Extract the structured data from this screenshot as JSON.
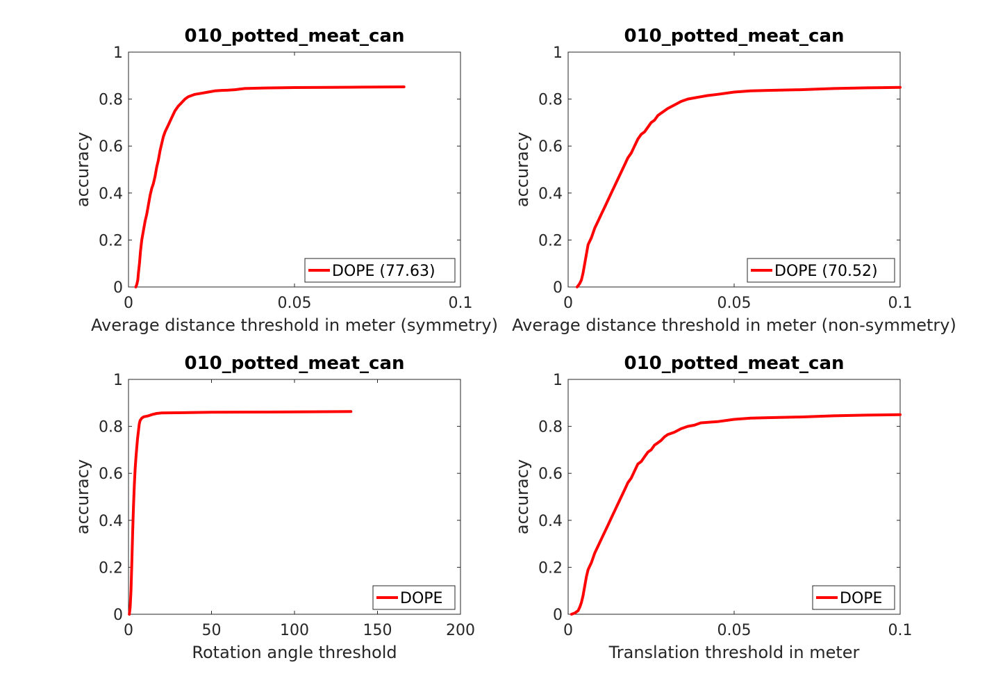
{
  "chart_data": [
    {
      "type": "line",
      "title": "010_potted_meat_can",
      "xlabel": "Average distance threshold in meter (symmetry)",
      "ylabel": "accuracy",
      "xlim": [
        0,
        0.1
      ],
      "ylim": [
        0,
        1
      ],
      "xticks": [
        "0",
        "0.05",
        "0.1"
      ],
      "yticks": [
        "0",
        "0.2",
        "0.4",
        "0.6",
        "0.8",
        "1"
      ],
      "grid": false,
      "legend_position": "bottom-right",
      "line_color": "#ff0000",
      "series": [
        {
          "name": "DOPE (77.63)",
          "x": [
            0.0022,
            0.0025,
            0.0028,
            0.003,
            0.0033,
            0.0036,
            0.004,
            0.0045,
            0.005,
            0.0055,
            0.006,
            0.0065,
            0.007,
            0.0075,
            0.008,
            0.0085,
            0.009,
            0.0095,
            0.01,
            0.0105,
            0.011,
            0.012,
            0.013,
            0.014,
            0.015,
            0.016,
            0.017,
            0.018,
            0.019,
            0.02,
            0.022,
            0.024,
            0.026,
            0.028,
            0.03,
            0.032,
            0.035,
            0.04,
            0.05,
            0.06,
            0.07,
            0.083
          ],
          "y": [
            0.0,
            0.01,
            0.03,
            0.06,
            0.1,
            0.15,
            0.2,
            0.24,
            0.28,
            0.31,
            0.35,
            0.39,
            0.42,
            0.44,
            0.47,
            0.51,
            0.54,
            0.58,
            0.61,
            0.64,
            0.66,
            0.69,
            0.72,
            0.75,
            0.77,
            0.785,
            0.8,
            0.81,
            0.815,
            0.82,
            0.825,
            0.83,
            0.835,
            0.837,
            0.838,
            0.84,
            0.845,
            0.847,
            0.849,
            0.85,
            0.851,
            0.852
          ]
        }
      ]
    },
    {
      "type": "line",
      "title": "010_potted_meat_can",
      "xlabel": "Average distance threshold in meter (non-symmetry)",
      "ylabel": "accuracy",
      "xlim": [
        0,
        0.1
      ],
      "ylim": [
        0,
        1
      ],
      "xticks": [
        "0",
        "0.05",
        "0.1"
      ],
      "yticks": [
        "0",
        "0.2",
        "0.4",
        "0.6",
        "0.8",
        "1"
      ],
      "grid": false,
      "legend_position": "bottom-right",
      "line_color": "#ff0000",
      "series": [
        {
          "name": "DOPE (70.52)",
          "x": [
            0.0027,
            0.003,
            0.0035,
            0.004,
            0.0045,
            0.005,
            0.0055,
            0.006,
            0.007,
            0.008,
            0.009,
            0.01,
            0.011,
            0.012,
            0.013,
            0.014,
            0.015,
            0.016,
            0.017,
            0.018,
            0.019,
            0.02,
            0.021,
            0.022,
            0.023,
            0.024,
            0.025,
            0.026,
            0.027,
            0.028,
            0.029,
            0.03,
            0.032,
            0.034,
            0.036,
            0.038,
            0.04,
            0.042,
            0.045,
            0.05,
            0.055,
            0.06,
            0.07,
            0.08,
            0.09,
            0.1
          ],
          "y": [
            0.0,
            0.005,
            0.015,
            0.03,
            0.06,
            0.1,
            0.14,
            0.18,
            0.21,
            0.25,
            0.28,
            0.31,
            0.34,
            0.37,
            0.4,
            0.43,
            0.46,
            0.49,
            0.52,
            0.55,
            0.57,
            0.6,
            0.63,
            0.65,
            0.66,
            0.68,
            0.7,
            0.71,
            0.73,
            0.74,
            0.75,
            0.76,
            0.775,
            0.79,
            0.8,
            0.805,
            0.81,
            0.815,
            0.82,
            0.83,
            0.835,
            0.837,
            0.84,
            0.845,
            0.848,
            0.85
          ]
        }
      ]
    },
    {
      "type": "line",
      "title": "010_potted_meat_can",
      "xlabel": "Rotation angle threshold",
      "ylabel": "accuracy",
      "xlim": [
        0,
        200
      ],
      "ylim": [
        0,
        1
      ],
      "xticks": [
        "0",
        "50",
        "100",
        "150",
        "200"
      ],
      "yticks": [
        "0",
        "0.2",
        "0.4",
        "0.6",
        "0.8",
        "1"
      ],
      "grid": false,
      "legend_position": "bottom-right",
      "line_color": "#ff0000",
      "series": [
        {
          "name": "DOPE",
          "x": [
            0.5,
            1,
            1.5,
            2,
            2.5,
            3,
            3.5,
            4,
            4.5,
            5,
            5.5,
            6,
            6.5,
            7,
            7.5,
            8,
            9,
            10,
            12,
            14,
            17,
            20,
            30,
            50,
            80,
            110,
            134
          ],
          "y": [
            0.0,
            0.03,
            0.1,
            0.22,
            0.35,
            0.46,
            0.55,
            0.62,
            0.67,
            0.71,
            0.75,
            0.78,
            0.81,
            0.825,
            0.83,
            0.835,
            0.84,
            0.842,
            0.845,
            0.85,
            0.855,
            0.857,
            0.858,
            0.86,
            0.861,
            0.862,
            0.863
          ]
        }
      ]
    },
    {
      "type": "line",
      "title": "010_potted_meat_can",
      "xlabel": "Translation threshold in meter",
      "ylabel": "accuracy",
      "xlim": [
        0,
        0.1
      ],
      "ylim": [
        0,
        1
      ],
      "xticks": [
        "0",
        "0.05",
        "0.1"
      ],
      "yticks": [
        "0",
        "0.2",
        "0.4",
        "0.6",
        "0.8",
        "1"
      ],
      "grid": false,
      "legend_position": "bottom-right",
      "line_color": "#ff0000",
      "series": [
        {
          "name": "DOPE",
          "x": [
            0.001,
            0.002,
            0.003,
            0.0035,
            0.004,
            0.0045,
            0.005,
            0.0055,
            0.006,
            0.007,
            0.008,
            0.009,
            0.01,
            0.011,
            0.012,
            0.013,
            0.014,
            0.015,
            0.016,
            0.017,
            0.018,
            0.019,
            0.02,
            0.021,
            0.022,
            0.023,
            0.024,
            0.025,
            0.026,
            0.027,
            0.028,
            0.029,
            0.03,
            0.032,
            0.034,
            0.036,
            0.038,
            0.04,
            0.045,
            0.05,
            0.055,
            0.06,
            0.07,
            0.08,
            0.09,
            0.1
          ],
          "y": [
            0.0,
            0.005,
            0.015,
            0.03,
            0.05,
            0.08,
            0.12,
            0.16,
            0.19,
            0.22,
            0.26,
            0.29,
            0.32,
            0.35,
            0.38,
            0.41,
            0.44,
            0.47,
            0.5,
            0.53,
            0.56,
            0.58,
            0.61,
            0.64,
            0.65,
            0.67,
            0.69,
            0.7,
            0.72,
            0.73,
            0.74,
            0.755,
            0.765,
            0.775,
            0.79,
            0.8,
            0.805,
            0.815,
            0.82,
            0.83,
            0.835,
            0.837,
            0.84,
            0.845,
            0.848,
            0.85
          ]
        }
      ]
    }
  ]
}
